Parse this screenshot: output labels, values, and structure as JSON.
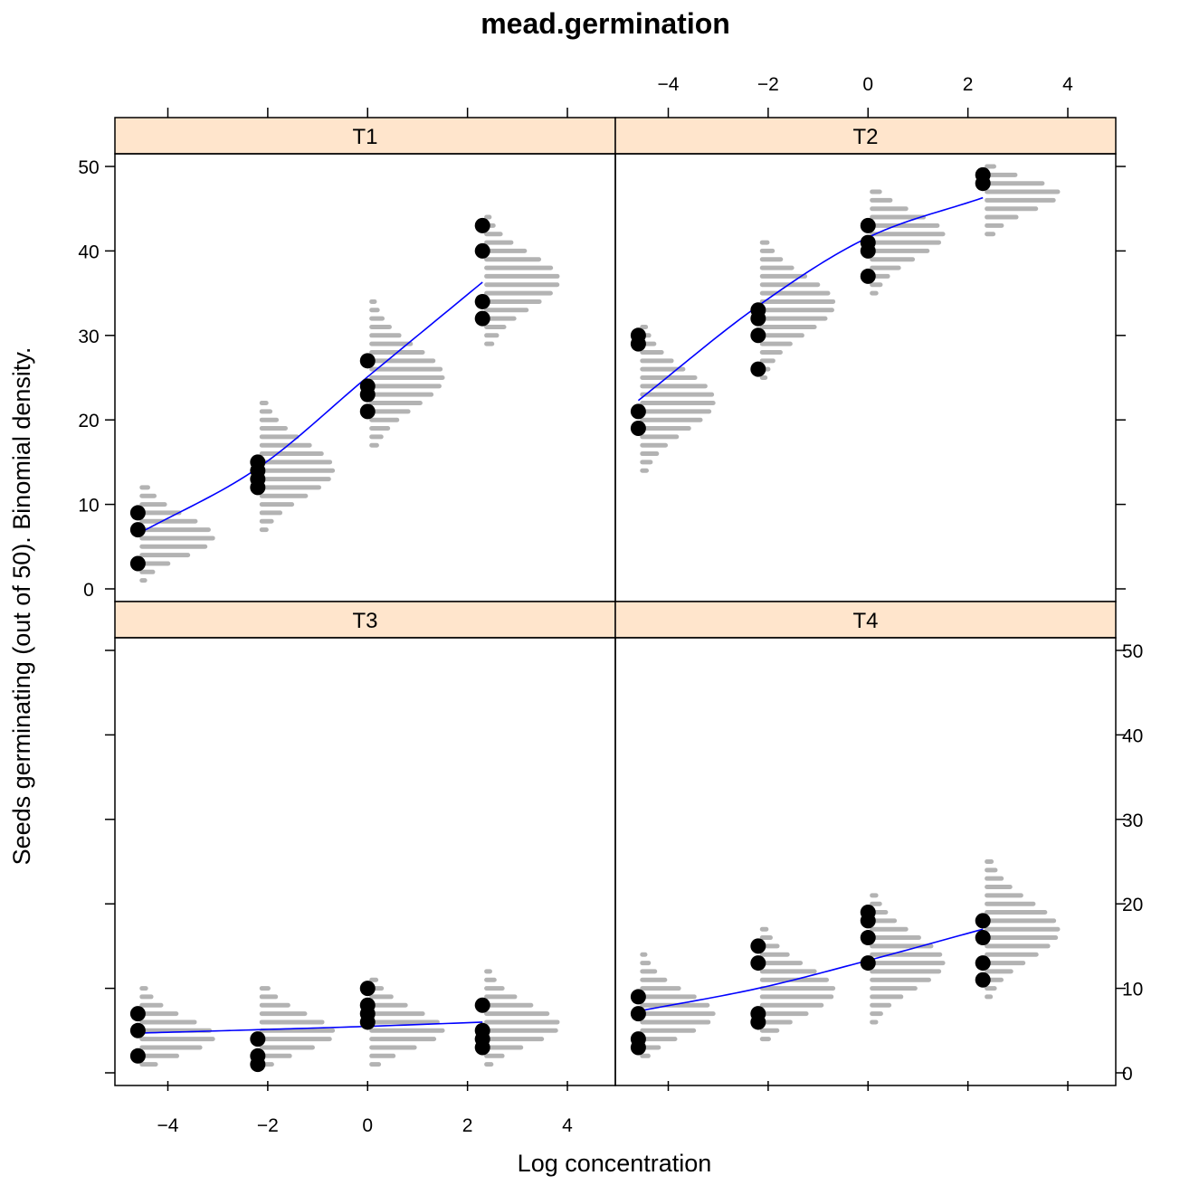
{
  "chart_data": {
    "type": "scatter",
    "title": "mead.germination",
    "xlabel": "Log concentration",
    "ylabel": "Seeds germinating (out of 50).  Binomial density.",
    "xlim": [
      -5.06,
      4.96
    ],
    "ylim": [
      -1.5,
      51.5
    ],
    "xticks": [
      -4,
      -2,
      0,
      2,
      4
    ],
    "yticks": [
      0,
      10,
      20,
      30,
      40,
      50
    ],
    "x_tick_labels": [
      "−4",
      "−2",
      "0",
      "2",
      "4"
    ],
    "y_tick_labels": [
      "0",
      "10",
      "20",
      "30",
      "40",
      "50"
    ],
    "grid": false,
    "layout": "2x2 panels",
    "trials": 50,
    "concentrations": [
      -4.6,
      -2.2,
      0,
      2.3
    ],
    "colors": {
      "points": "#000000",
      "fit_line": "#0000ff",
      "density_bars": "#b3b3b3",
      "strip": "#ffe5cc"
    },
    "panels": [
      {
        "name": "T1",
        "points": [
          [
            -4.6,
            3
          ],
          [
            -4.6,
            7
          ],
          [
            -4.6,
            9
          ],
          [
            -2.2,
            12
          ],
          [
            -2.2,
            13
          ],
          [
            -2.2,
            14
          ],
          [
            -2.2,
            15
          ],
          [
            0,
            21
          ],
          [
            0,
            23
          ],
          [
            0,
            24
          ],
          [
            0,
            27
          ],
          [
            2.3,
            32
          ],
          [
            2.3,
            34
          ],
          [
            2.3,
            40
          ],
          [
            2.3,
            43
          ]
        ],
        "fitted": [
          6.5,
          14.3,
          25.1,
          36.3
        ]
      },
      {
        "name": "T2",
        "points": [
          [
            -4.6,
            19
          ],
          [
            -4.6,
            21
          ],
          [
            -4.6,
            29
          ],
          [
            -4.6,
            30
          ],
          [
            -2.2,
            26
          ],
          [
            -2.2,
            30
          ],
          [
            -2.2,
            32
          ],
          [
            -2.2,
            33
          ],
          [
            0,
            37
          ],
          [
            0,
            40
          ],
          [
            0,
            41
          ],
          [
            0,
            43
          ],
          [
            2.3,
            48
          ],
          [
            2.3,
            49
          ]
        ],
        "fitted": [
          22.3,
          33.5,
          41.6,
          46.3
        ]
      },
      {
        "name": "T3",
        "points": [
          [
            -4.6,
            2
          ],
          [
            -4.6,
            5
          ],
          [
            -4.6,
            7
          ],
          [
            -2.2,
            1
          ],
          [
            -2.2,
            2
          ],
          [
            -2.2,
            4
          ],
          [
            0,
            6
          ],
          [
            0,
            7
          ],
          [
            0,
            8
          ],
          [
            0,
            10
          ],
          [
            2.3,
            3
          ],
          [
            2.3,
            4
          ],
          [
            2.3,
            5
          ],
          [
            2.3,
            8
          ]
        ],
        "fitted": [
          4.7,
          5.1,
          5.5,
          6.0
        ]
      },
      {
        "name": "T4",
        "points": [
          [
            -4.6,
            3
          ],
          [
            -4.6,
            4
          ],
          [
            -4.6,
            7
          ],
          [
            -4.6,
            9
          ],
          [
            -2.2,
            6
          ],
          [
            -2.2,
            7
          ],
          [
            -2.2,
            13
          ],
          [
            -2.2,
            15
          ],
          [
            0,
            13
          ],
          [
            0,
            16
          ],
          [
            0,
            18
          ],
          [
            0,
            19
          ],
          [
            2.3,
            11
          ],
          [
            2.3,
            13
          ],
          [
            2.3,
            16
          ],
          [
            2.3,
            18
          ]
        ],
        "fitted": [
          7.3,
          10.0,
          13.3,
          17.0
        ]
      }
    ]
  }
}
